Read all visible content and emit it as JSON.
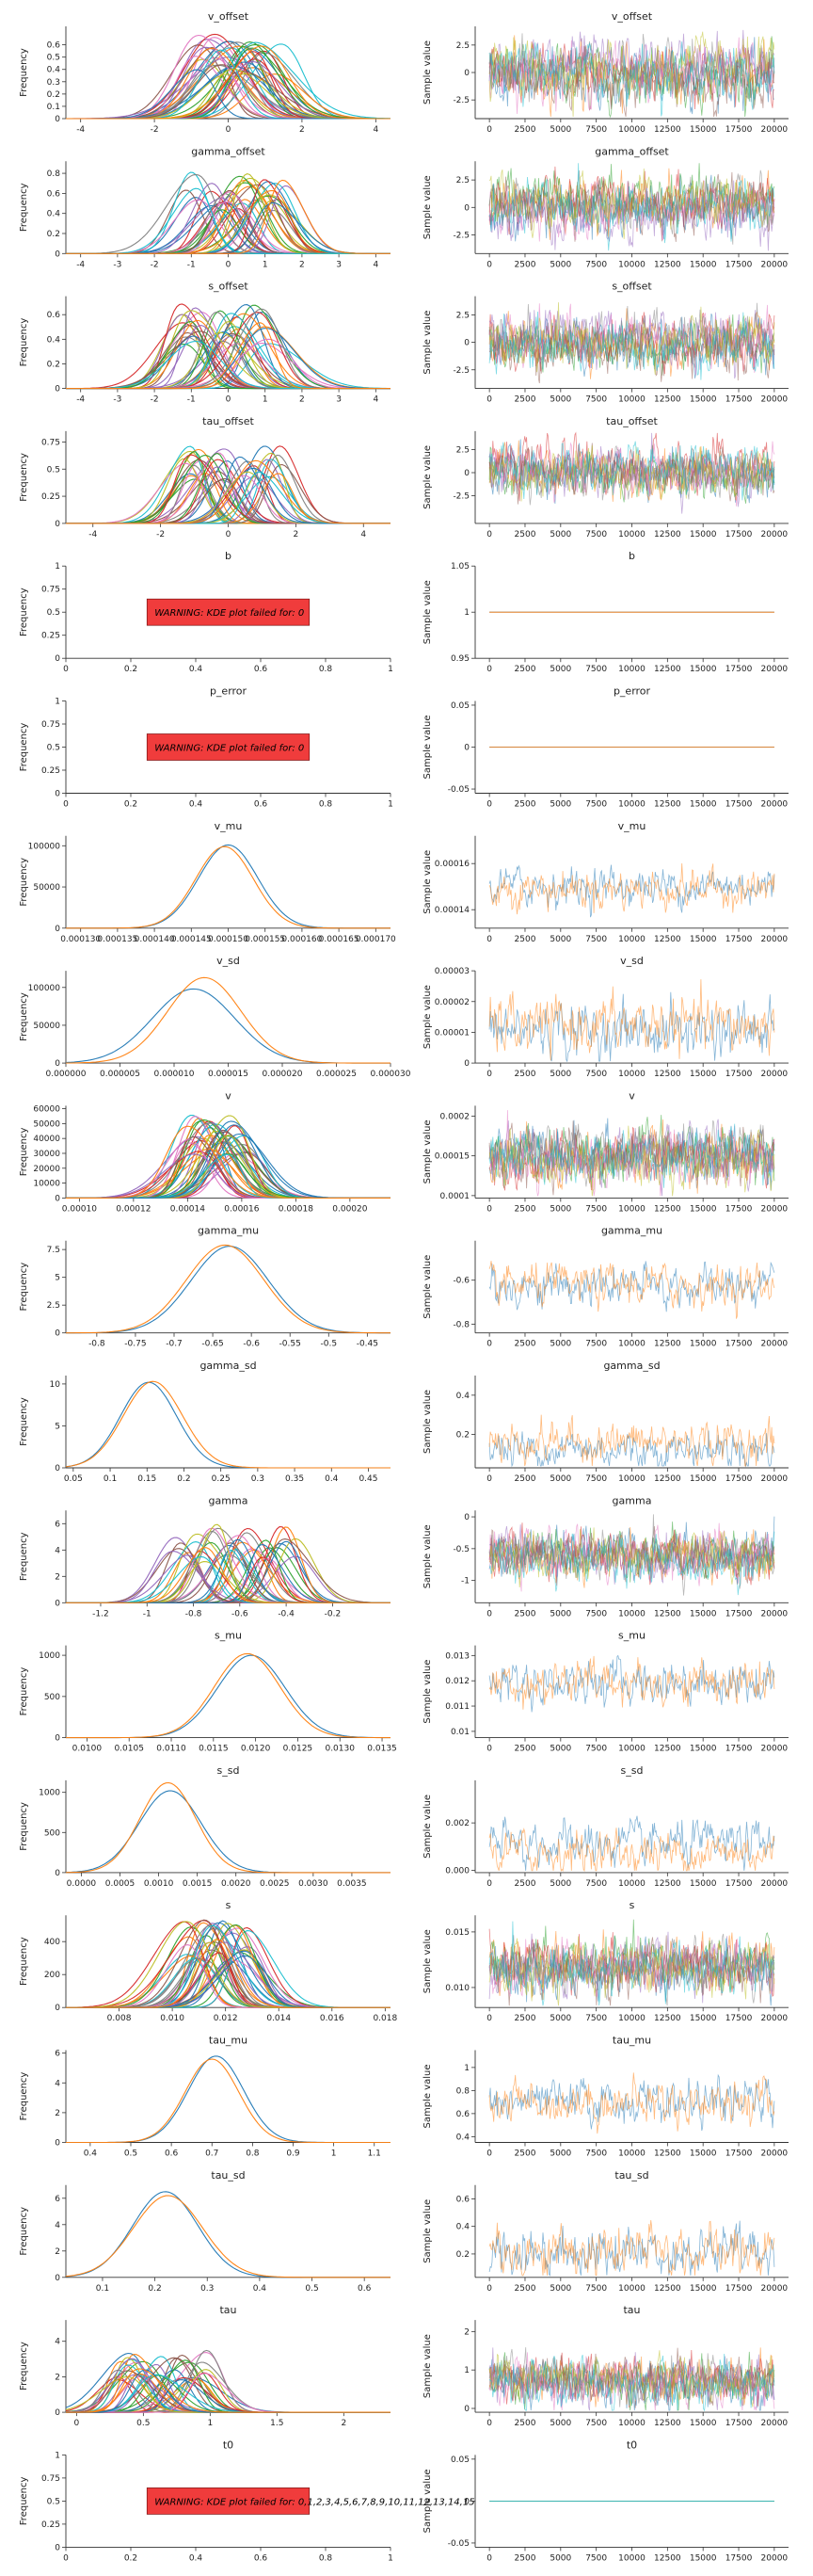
{
  "palette": [
    "#1f77b4",
    "#ff7f0e",
    "#2ca02c",
    "#d62728",
    "#9467bd",
    "#8c564b",
    "#e377c2",
    "#7f7f7f",
    "#bcbd22",
    "#17becf"
  ],
  "warning_box_color": "#f03c3c",
  "chart_data": [
    {
      "name": "v_offset",
      "type": "kde_and_trace",
      "kde": {
        "xlim": [
          -4.4,
          4.4
        ],
        "ylim": [
          0,
          0.75
        ],
        "xticks": [
          -4,
          -2,
          0,
          2,
          4
        ],
        "yticks": [
          0.0,
          0.1,
          0.2,
          0.3,
          0.4,
          0.5,
          0.6
        ],
        "curves": {
          "count": 42,
          "center_min": -1.1,
          "center_max": 1.5,
          "sd": 0.7,
          "peak": 0.55
        }
      },
      "trace": {
        "xlim": [
          -1000,
          21000
        ],
        "ylim": [
          -4.2,
          4.2
        ],
        "yticks": [
          -2.5,
          0.0,
          2.5
        ],
        "lines": 10,
        "mean": 0,
        "spread": 1.2
      }
    },
    {
      "name": "gamma_offset",
      "type": "kde_and_trace",
      "kde": {
        "xlim": [
          -4.4,
          4.4
        ],
        "ylim": [
          0,
          0.92
        ],
        "xticks": [
          -4,
          -3,
          -2,
          -1,
          0,
          1,
          2,
          3,
          4
        ],
        "yticks": [
          0.0,
          0.2,
          0.4,
          0.6,
          0.8
        ],
        "curves": {
          "count": 42,
          "center_min": -1.2,
          "center_max": 1.6,
          "sd": 0.55,
          "peak": 0.65
        }
      },
      "trace": {
        "xlim": [
          -1000,
          21000
        ],
        "ylim": [
          -4.2,
          4.2
        ],
        "yticks": [
          -2.5,
          0.0,
          2.5
        ],
        "lines": 10,
        "mean": 0,
        "spread": 1.1
      }
    },
    {
      "name": "s_offset",
      "type": "kde_and_trace",
      "kde": {
        "xlim": [
          -4.4,
          4.4
        ],
        "ylim": [
          0,
          0.75
        ],
        "xticks": [
          -4,
          -3,
          -2,
          -1,
          0,
          1,
          2,
          3,
          4
        ],
        "yticks": [
          0.0,
          0.2,
          0.4,
          0.6
        ],
        "curves": {
          "count": 42,
          "center_min": -1.3,
          "center_max": 1.2,
          "sd": 0.6,
          "peak": 0.55
        }
      },
      "trace": {
        "xlim": [
          -1000,
          21000
        ],
        "ylim": [
          -4.2,
          4.2
        ],
        "yticks": [
          -2.5,
          0.0,
          2.5
        ],
        "lines": 10,
        "mean": 0,
        "spread": 1.1
      }
    },
    {
      "name": "tau_offset",
      "type": "kde_and_trace",
      "kde": {
        "xlim": [
          -4.8,
          4.8
        ],
        "ylim": [
          0,
          0.85
        ],
        "xticks": [
          -4,
          -2,
          0,
          2,
          4
        ],
        "yticks": [
          0.0,
          0.25,
          0.5,
          0.75
        ],
        "curves": {
          "count": 42,
          "center_min": -1.6,
          "center_max": 1.6,
          "sd": 0.55,
          "peak": 0.6
        }
      },
      "trace": {
        "xlim": [
          -1000,
          21000
        ],
        "ylim": [
          -5.5,
          4.5
        ],
        "yticks": [
          -2.5,
          0.0,
          2.5
        ],
        "lines": 10,
        "mean": 0,
        "spread": 1.2
      }
    },
    {
      "name": "b",
      "type": "warning_and_trace",
      "kde": {
        "xlim": [
          0,
          1
        ],
        "ylim": [
          0,
          1
        ],
        "xticks": [
          0.0,
          0.2,
          0.4,
          0.6,
          0.8,
          1.0
        ],
        "yticks": [
          0.0,
          0.25,
          0.5,
          0.75,
          1.0
        ],
        "warning": "WARNING: KDE plot failed for: 0"
      },
      "trace": {
        "xlim": [
          -1000,
          21000
        ],
        "ylim": [
          0.95,
          1.05
        ],
        "yticks": [
          0.95,
          1.0,
          1.05
        ],
        "lines": 2,
        "mean": 1.0,
        "spread": 0
      }
    },
    {
      "name": "p_error",
      "type": "warning_and_trace",
      "kde": {
        "xlim": [
          0,
          1
        ],
        "ylim": [
          0,
          1
        ],
        "xticks": [
          0.0,
          0.2,
          0.4,
          0.6,
          0.8,
          1.0
        ],
        "yticks": [
          0.0,
          0.25,
          0.5,
          0.75,
          1.0
        ],
        "warning": "WARNING: KDE plot failed for: 0"
      },
      "trace": {
        "xlim": [
          -1000,
          21000
        ],
        "ylim": [
          -0.055,
          0.055
        ],
        "yticks": [
          -0.05,
          0.0,
          0.05
        ],
        "lines": 2,
        "mean": 0.0,
        "spread": 0
      }
    },
    {
      "name": "v_mu",
      "type": "kde_and_trace",
      "kde": {
        "xlim": [
          0.000128,
          0.000172
        ],
        "ylim": [
          0,
          112000
        ],
        "xticks": [
          0.00013,
          0.000135,
          0.00014,
          0.000145,
          0.00015,
          0.000155,
          0.00016,
          0.000165,
          0.00017
        ],
        "xtick_labels": [
          "0.000130",
          "0.000135",
          "0.000140",
          "0.000145",
          "0.000150",
          "0.000155",
          "0.000160",
          "0.000165",
          "0.000170"
        ],
        "yticks": [
          0,
          50000,
          100000
        ],
        "curves": {
          "explicit": [
            {
              "c": 0.00015,
              "sd": 4e-06,
              "peak": 101000
            },
            {
              "c": 0.0001495,
              "sd": 3.9e-06,
              "peak": 99000
            }
          ]
        }
      },
      "trace": {
        "xlim": [
          -1000,
          21000
        ],
        "ylim": [
          0.000132,
          0.000172
        ],
        "yticks": [
          0.00014,
          0.00016
        ],
        "lines": 2,
        "mean": 0.000149,
        "spread": 4e-06,
        "series_colors": [
          0,
          1
        ]
      }
    },
    {
      "name": "v_sd",
      "type": "kde_and_trace",
      "kde": {
        "xlim": [
          0,
          3e-05
        ],
        "ylim": [
          0,
          122000
        ],
        "xticks": [
          0,
          5e-06,
          1e-05,
          1.5e-05,
          2e-05,
          2.5e-05,
          3e-05
        ],
        "xtick_labels": [
          "0.000000",
          "0.000005",
          "0.000010",
          "0.000015",
          "0.000020",
          "0.000025",
          "0.000030"
        ],
        "yticks": [
          0,
          50000,
          100000
        ],
        "curves": {
          "explicit": [
            {
              "c": 1.18e-05,
              "sd": 3.8e-06,
              "peak": 98000
            },
            {
              "c": 1.28e-05,
              "sd": 3.4e-06,
              "peak": 113000
            }
          ]
        }
      },
      "trace": {
        "xlim": [
          -1000,
          21000
        ],
        "ylim": [
          0,
          3e-05
        ],
        "yticks": [
          0,
          1e-05,
          2e-05,
          3e-05
        ],
        "lines": 2,
        "mean": 1.2e-05,
        "spread": 4.5e-06,
        "series_colors": [
          0,
          1
        ]
      }
    },
    {
      "name": "v",
      "type": "kde_and_trace",
      "kde": {
        "xlim": [
          9.5e-05,
          0.000215
        ],
        "ylim": [
          0,
          62000
        ],
        "xticks": [
          0.0001,
          0.00012,
          0.00014,
          0.00016,
          0.00018,
          0.0002
        ],
        "xtick_labels": [
          "0.00010",
          "0.00012",
          "0.00014",
          "0.00016",
          "0.00018",
          "0.00020"
        ],
        "yticks": [
          0,
          10000,
          20000,
          30000,
          40000,
          50000,
          60000
        ],
        "curves": {
          "count": 42,
          "center_min": 0.00014,
          "center_max": 0.000162,
          "sd": 8e-06,
          "peak": 45000
        }
      },
      "trace": {
        "xlim": [
          -1000,
          21000
        ],
        "ylim": [
          9.7e-05,
          0.000213
        ],
        "yticks": [
          0.0001,
          0.00015,
          0.0002
        ],
        "lines": 10,
        "mean": 0.00015,
        "spread": 1.6e-05
      }
    },
    {
      "name": "gamma_mu",
      "type": "kde_and_trace",
      "kde": {
        "xlim": [
          -0.84,
          -0.42
        ],
        "ylim": [
          0,
          8.3
        ],
        "xticks": [
          -0.8,
          -0.75,
          -0.7,
          -0.65,
          -0.6,
          -0.55,
          -0.5,
          -0.45
        ],
        "yticks": [
          0.0,
          2.5,
          5.0,
          7.5
        ],
        "curves": {
          "explicit": [
            {
              "c": -0.628,
              "sd": 0.05,
              "peak": 7.8
            },
            {
              "c": -0.634,
              "sd": 0.05,
              "peak": 7.9
            }
          ]
        }
      },
      "trace": {
        "xlim": [
          -1000,
          21000
        ],
        "ylim": [
          -0.84,
          -0.42
        ],
        "yticks": [
          -0.8,
          -0.6
        ],
        "lines": 2,
        "mean": -0.63,
        "spread": 0.045,
        "series_colors": [
          0,
          1
        ]
      }
    },
    {
      "name": "gamma_sd",
      "type": "kde_and_trace",
      "kde": {
        "xlim": [
          0.04,
          0.48
        ],
        "ylim": [
          0,
          11
        ],
        "xticks": [
          0.05,
          0.1,
          0.15,
          0.2,
          0.25,
          0.3,
          0.35,
          0.4,
          0.45
        ],
        "yticks": [
          0,
          5,
          10
        ],
        "curves": {
          "explicit": [
            {
              "c": 0.152,
              "sd": 0.038,
              "peak": 10.2
            },
            {
              "c": 0.158,
              "sd": 0.04,
              "peak": 10.3
            }
          ]
        }
      },
      "trace": {
        "xlim": [
          -1000,
          21000
        ],
        "ylim": [
          0.03,
          0.5
        ],
        "yticks": [
          0.2,
          0.4
        ],
        "lines": 2,
        "mean": 0.16,
        "spread": 0.05,
        "series_colors": [
          0,
          1
        ]
      }
    },
    {
      "name": "gamma",
      "type": "kde_and_trace",
      "kde": {
        "xlim": [
          -1.35,
          0.05
        ],
        "ylim": [
          0,
          7
        ],
        "xticks": [
          -1.2,
          -1.0,
          -0.8,
          -0.6,
          -0.4,
          -0.2
        ],
        "yticks": [
          0,
          2,
          4,
          6
        ],
        "curves": {
          "count": 42,
          "center_min": -0.9,
          "center_max": -0.35,
          "sd": 0.075,
          "peak": 4.8
        }
      },
      "trace": {
        "xlim": [
          -1000,
          21000
        ],
        "ylim": [
          -1.35,
          0.1
        ],
        "yticks": [
          -1.0,
          -0.5,
          0.0
        ],
        "lines": 10,
        "mean": -0.62,
        "spread": 0.17
      }
    },
    {
      "name": "s_mu",
      "type": "kde_and_trace",
      "kde": {
        "xlim": [
          0.00975,
          0.0136
        ],
        "ylim": [
          0,
          1120
        ],
        "xticks": [
          0.01,
          0.0105,
          0.011,
          0.0115,
          0.012,
          0.0125,
          0.013,
          0.0135
        ],
        "xtick_labels": [
          "0.0100",
          "0.0105",
          "0.0110",
          "0.0115",
          "0.0120",
          "0.0125",
          "0.0130",
          "0.0135"
        ],
        "yticks": [
          0,
          500,
          1000
        ],
        "curves": {
          "explicit": [
            {
              "c": 0.01195,
              "sd": 0.0004,
              "peak": 1000
            },
            {
              "c": 0.0119,
              "sd": 0.00039,
              "peak": 1020
            }
          ]
        }
      },
      "trace": {
        "xlim": [
          -1000,
          21000
        ],
        "ylim": [
          0.00975,
          0.0134
        ],
        "yticks": [
          0.01,
          0.011,
          0.012,
          0.013
        ],
        "lines": 2,
        "mean": 0.0119,
        "spread": 0.00042,
        "series_colors": [
          0,
          1
        ]
      }
    },
    {
      "name": "s_sd",
      "type": "kde_and_trace",
      "kde": {
        "xlim": [
          -0.0002,
          0.004
        ],
        "ylim": [
          0,
          1150
        ],
        "xticks": [
          0,
          0.0005,
          0.001,
          0.0015,
          0.002,
          0.0025,
          0.003,
          0.0035
        ],
        "xtick_labels": [
          "0.0000",
          "0.0005",
          "0.0010",
          "0.0015",
          "0.0020",
          "0.0025",
          "0.0030",
          "0.0035"
        ],
        "yticks": [
          0,
          500,
          1000
        ],
        "curves": {
          "explicit": [
            {
              "c": 0.00115,
              "sd": 0.0004,
              "peak": 1020
            },
            {
              "c": 0.00112,
              "sd": 0.00036,
              "peak": 1120
            }
          ]
        }
      },
      "trace": {
        "xlim": [
          -1000,
          21000
        ],
        "ylim": [
          -0.0001,
          0.0038
        ],
        "yticks": [
          0,
          0.002
        ],
        "ytick_labels": [
          "0.000",
          "0.002"
        ],
        "lines": 2,
        "mean": 0.0011,
        "spread": 0.00045,
        "series_colors": [
          0,
          1
        ]
      }
    },
    {
      "name": "s",
      "type": "kde_and_trace",
      "kde": {
        "xlim": [
          0.006,
          0.0182
        ],
        "ylim": [
          0,
          560
        ],
        "xticks": [
          0.008,
          0.01,
          0.012,
          0.014,
          0.016,
          0.018
        ],
        "xtick_labels": [
          "0.008",
          "0.010",
          "0.012",
          "0.014",
          "0.016",
          "0.018"
        ],
        "yticks": [
          0,
          200,
          400
        ],
        "curves": {
          "count": 42,
          "center_min": 0.0103,
          "center_max": 0.0129,
          "sd": 0.0008,
          "peak": 430
        }
      },
      "trace": {
        "xlim": [
          -1000,
          21000
        ],
        "ylim": [
          0.0082,
          0.0165
        ],
        "yticks": [
          0.01,
          0.015
        ],
        "ytick_labels": [
          "0.010",
          "0.015"
        ],
        "lines": 10,
        "mean": 0.0118,
        "spread": 0.0011
      }
    },
    {
      "name": "tau_mu",
      "type": "kde_and_trace",
      "kde": {
        "xlim": [
          0.34,
          1.14
        ],
        "ylim": [
          0,
          6.2
        ],
        "xticks": [
          0.4,
          0.5,
          0.6,
          0.7,
          0.8,
          0.9,
          1.0,
          1.1
        ],
        "yticks": [
          0,
          2,
          4,
          6
        ],
        "curves": {
          "explicit": [
            {
              "c": 0.71,
              "sd": 0.068,
              "peak": 5.8
            },
            {
              "c": 0.7,
              "sd": 0.066,
              "peak": 5.6
            }
          ]
        }
      },
      "trace": {
        "xlim": [
          -1000,
          21000
        ],
        "ylim": [
          0.35,
          1.15
        ],
        "yticks": [
          0.4,
          0.6,
          0.8,
          1.0
        ],
        "lines": 2,
        "mean": 0.72,
        "spread": 0.09,
        "series_colors": [
          0,
          1
        ]
      }
    },
    {
      "name": "tau_sd",
      "type": "kde_and_trace",
      "kde": {
        "xlim": [
          0.03,
          0.65
        ],
        "ylim": [
          0,
          7
        ],
        "xticks": [
          0.1,
          0.2,
          0.3,
          0.4,
          0.5,
          0.6
        ],
        "yticks": [
          0,
          2,
          4,
          6
        ],
        "curves": {
          "explicit": [
            {
              "c": 0.22,
              "sd": 0.062,
              "peak": 6.5
            },
            {
              "c": 0.225,
              "sd": 0.066,
              "peak": 6.2
            }
          ]
        }
      },
      "trace": {
        "xlim": [
          -1000,
          21000
        ],
        "ylim": [
          0.03,
          0.7
        ],
        "yticks": [
          0.2,
          0.4,
          0.6
        ],
        "lines": 2,
        "mean": 0.24,
        "spread": 0.09,
        "series_colors": [
          0,
          1
        ]
      }
    },
    {
      "name": "tau",
      "type": "kde_and_trace",
      "kde": {
        "xlim": [
          -0.08,
          2.35
        ],
        "ylim": [
          0,
          5.2
        ],
        "xticks": [
          0.0,
          0.5,
          1.0,
          1.5,
          2.0
        ],
        "yticks": [
          0,
          2,
          4
        ],
        "curves": {
          "count": 42,
          "center_min": 0.3,
          "center_max": 1.0,
          "sd": 0.14,
          "peak": 2.8
        }
      },
      "trace": {
        "xlim": [
          -1000,
          21000
        ],
        "ylim": [
          -0.1,
          2.3
        ],
        "yticks": [
          0,
          1,
          2
        ],
        "lines": 10,
        "mean": 0.72,
        "spread": 0.28
      }
    },
    {
      "name": "t0",
      "type": "warning_and_trace",
      "kde": {
        "xlim": [
          0,
          1
        ],
        "ylim": [
          0,
          1
        ],
        "xticks": [
          0.0,
          0.2,
          0.4,
          0.6,
          0.8,
          1.0
        ],
        "yticks": [
          0.0,
          0.25,
          0.5,
          0.75,
          1.0
        ],
        "warning": "WARNING: KDE plot failed for: 0,1,2,3,4,5,6,7,8,9,10,11,12,13,14,15"
      },
      "trace": {
        "xlim": [
          -1000,
          21000
        ],
        "ylim": [
          -0.055,
          0.055
        ],
        "yticks": [
          -0.05,
          0.0,
          0.05
        ],
        "lines": 20,
        "mean": 0.0,
        "spread": 0
      }
    }
  ],
  "trace_xticks": [
    0,
    2500,
    5000,
    7500,
    10000,
    12500,
    15000,
    17500,
    20000
  ],
  "labels": {
    "kde_ylabel": "Frequency",
    "trace_ylabel": "Sample value"
  }
}
